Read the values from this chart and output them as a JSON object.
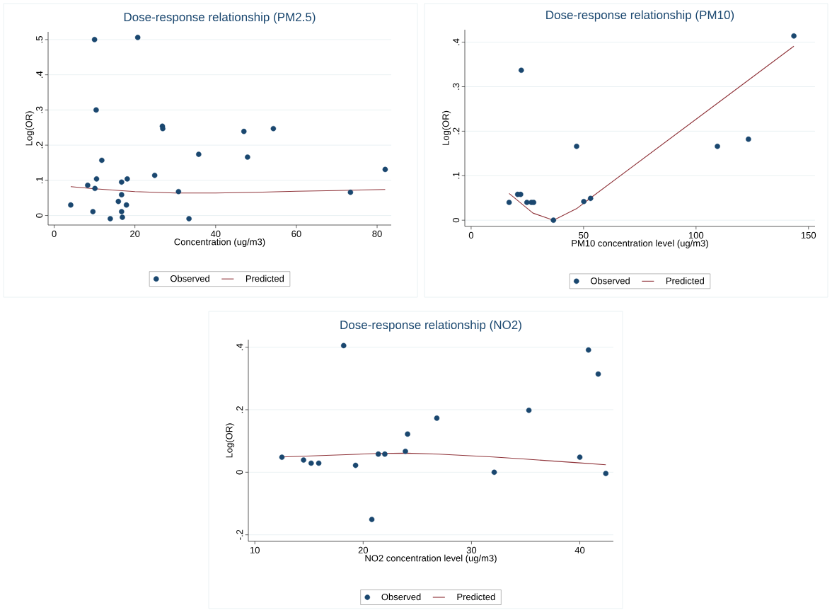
{
  "chart_data": [
    {
      "type": "scatter",
      "title": "Dose-response relationship (PM2.5)",
      "xlabel": "Concentration (ug/m3)",
      "ylabel": "Log(OR)",
      "xlim": [
        -1.5,
        83.5
      ],
      "ylim": [
        -0.027,
        0.522
      ],
      "xticks": [
        0,
        20,
        40,
        60,
        80
      ],
      "yticks": [
        {
          "value": 0,
          "label": "0"
        },
        {
          "value": 0.1,
          "label": ".1"
        },
        {
          "value": 0.2,
          "label": ".2"
        },
        {
          "value": 0.3,
          "label": ".3"
        },
        {
          "value": 0.4,
          "label": ".4"
        },
        {
          "value": 0.5,
          "label": ".5"
        }
      ],
      "grid": "y",
      "legend": "bottom",
      "series": [
        {
          "name": "Observed",
          "marker": "circle",
          "color": "#1a476f",
          "x": [
            4.1,
            10.0,
            20.7,
            10.4,
            11.8,
            8.3,
            10.1,
            10.5,
            9.6,
            13.9,
            15.9,
            16.7,
            16.7,
            16.7,
            16.9,
            18.1,
            17.9,
            24.9,
            26.8,
            26.9,
            30.8,
            33.4,
            35.8,
            47.0,
            47.9,
            54.3,
            73.4,
            82.0
          ],
          "values": [
            0.03,
            0.5,
            0.506,
            0.3,
            0.157,
            0.086,
            0.077,
            0.104,
            0.011,
            -0.009,
            0.04,
            0.095,
            0.059,
            0.011,
            -0.005,
            0.104,
            0.03,
            0.114,
            0.254,
            0.247,
            0.068,
            -0.009,
            0.174,
            0.239,
            0.166,
            0.247,
            0.066,
            0.131
          ]
        },
        {
          "name": "Predicted",
          "type": "line",
          "marker": "none",
          "color": "#90353b",
          "x": [
            4.1,
            10,
            20,
            30,
            40,
            50,
            60,
            70,
            82
          ],
          "values": [
            0.082,
            0.076,
            0.068,
            0.064,
            0.064,
            0.066,
            0.069,
            0.071,
            0.074
          ]
        }
      ]
    },
    {
      "type": "scatter",
      "title": "Dose-response relationship (PM10)",
      "xlabel": "PM10 concentration level (ug/m3)",
      "ylabel": "Log(OR)",
      "xlim": [
        -2.8,
        152.9
      ],
      "ylim": [
        -0.014,
        0.428
      ],
      "xticks": [
        0,
        50,
        100,
        150
      ],
      "yticks": [
        {
          "value": 0,
          "label": "0"
        },
        {
          "value": 0.1,
          "label": ".1"
        },
        {
          "value": 0.2,
          "label": ".2"
        },
        {
          "value": 0.3,
          "label": ".3"
        },
        {
          "value": 0.4,
          "label": ".4"
        }
      ],
      "grid": "y",
      "legend": "bottom",
      "series": [
        {
          "name": "Observed",
          "marker": "circle",
          "color": "#1a476f",
          "x": [
            16.9,
            20.7,
            22.0,
            22.3,
            24.8,
            26.8,
            27.8,
            36.6,
            46.9,
            50.1,
            53.1,
            109.5,
            123.3,
            143.5
          ],
          "values": [
            0.04,
            0.058,
            0.058,
            0.337,
            0.04,
            0.04,
            0.04,
            0.0,
            0.166,
            0.042,
            0.049,
            0.166,
            0.182,
            0.414
          ]
        },
        {
          "name": "Predicted",
          "type": "line",
          "marker": "none",
          "color": "#90353b",
          "x": [
            16.9,
            27.5,
            36.6,
            46.9,
            53.1,
            143.5
          ],
          "values": [
            0.06,
            0.016,
            0.0,
            0.026,
            0.05,
            0.391
          ]
        }
      ]
    },
    {
      "type": "scatter",
      "title": "Dose-response relationship (NO2)",
      "xlabel": "NO2 concentration level (ug/m3)",
      "ylabel": "Log(OR)",
      "xlim": [
        9.4,
        43.1
      ],
      "ylim": [
        -0.221,
        0.424
      ],
      "xticks": [
        10,
        20,
        30,
        40
      ],
      "yticks": [
        {
          "value": -0.2,
          "label": "-.2"
        },
        {
          "value": 0,
          "label": "0"
        },
        {
          "value": 0.2,
          "label": ".2"
        },
        {
          "value": 0.4,
          "label": ".4"
        }
      ],
      "grid": "y",
      "legend": "bottom",
      "series": [
        {
          "name": "Observed",
          "marker": "circle",
          "color": "#1a476f",
          "x": [
            12.5,
            14.5,
            15.2,
            15.9,
            18.2,
            19.3,
            20.8,
            21.4,
            22.0,
            23.9,
            24.1,
            26.8,
            32.1,
            35.3,
            40.0,
            40.8,
            41.7,
            42.4
          ],
          "values": [
            0.048,
            0.039,
            0.029,
            0.029,
            0.405,
            0.022,
            -0.151,
            0.058,
            0.058,
            0.067,
            0.122,
            0.173,
            0.0,
            0.198,
            0.048,
            0.391,
            0.314,
            -0.004
          ]
        },
        {
          "name": "Predicted",
          "type": "line",
          "marker": "none",
          "color": "#90353b",
          "x": [
            12.5,
            21.5,
            24,
            27,
            32,
            35,
            40,
            42.4
          ],
          "values": [
            0.049,
            0.06,
            0.061,
            0.058,
            0.049,
            0.042,
            0.03,
            0.024
          ]
        }
      ]
    }
  ]
}
